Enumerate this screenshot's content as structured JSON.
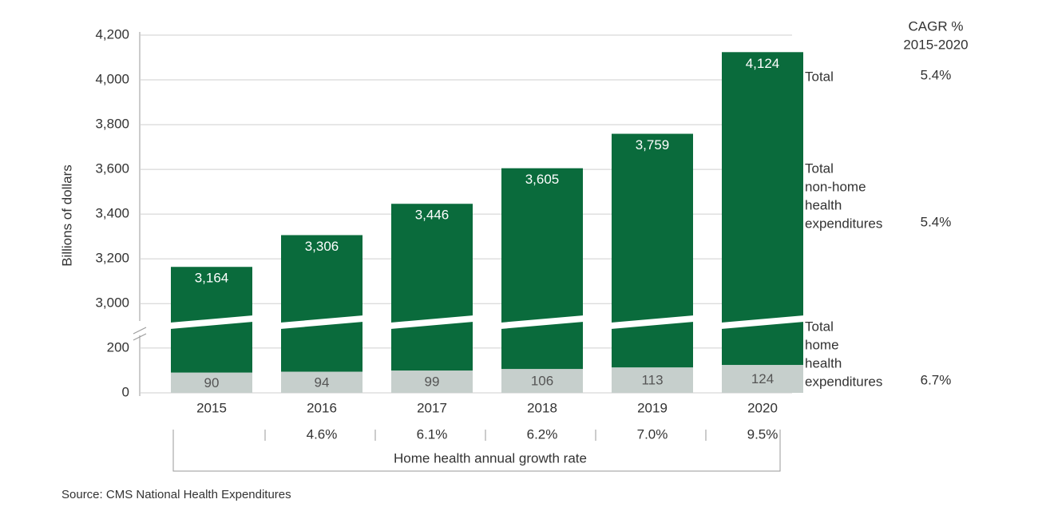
{
  "chart_data": {
    "type": "broken-stacked-bar",
    "y_label": "Billions of dollars",
    "categories": [
      "2015",
      "2016",
      "2017",
      "2018",
      "2019",
      "2020"
    ],
    "series": [
      {
        "name": "Total home health expenditures",
        "color": "#c6cfcc",
        "values": [
          90,
          94,
          99,
          106,
          113,
          124
        ]
      }
    ],
    "totals": {
      "color": "#0a6b3c",
      "values": [
        3164,
        3306,
        3446,
        3605,
        3759,
        4124
      ],
      "value_labels": [
        "3,164",
        "3,306",
        "3,446",
        "3,605",
        "3,759",
        "4,124"
      ]
    },
    "ylim": [
      2940,
      4200
    ],
    "yticks": [
      {
        "value": 3000,
        "label": "3,000"
      },
      {
        "value": 3200,
        "label": "3,200"
      },
      {
        "value": 3400,
        "label": "3,400"
      },
      {
        "value": 3600,
        "label": "3,600"
      },
      {
        "value": 3800,
        "label": "3,800"
      },
      {
        "value": 4000,
        "label": "4,000"
      },
      {
        "value": 4200,
        "label": "4,200"
      }
    ],
    "ylim_lower": [
      0,
      260
    ],
    "yticks_lower": [
      0,
      200
    ],
    "grid": true,
    "growth_label": "Home health annual growth rate",
    "growth_rates": [
      null,
      "4.6%",
      "6.1%",
      "6.2%",
      "7.0%",
      "9.5%"
    ],
    "cagr_header": [
      "CAGR %",
      "2015-2020"
    ],
    "side_labels": [
      {
        "lines": [
          "Total"
        ],
        "cagr": "5.4%"
      },
      {
        "lines": [
          "Total",
          "non-home",
          "health",
          "expenditures"
        ],
        "cagr": "5.4%"
      },
      {
        "lines": [
          "Total",
          "home",
          "health",
          "expenditures"
        ],
        "cagr": "6.7%"
      }
    ],
    "source": "Source: CMS National Health Expenditures"
  }
}
